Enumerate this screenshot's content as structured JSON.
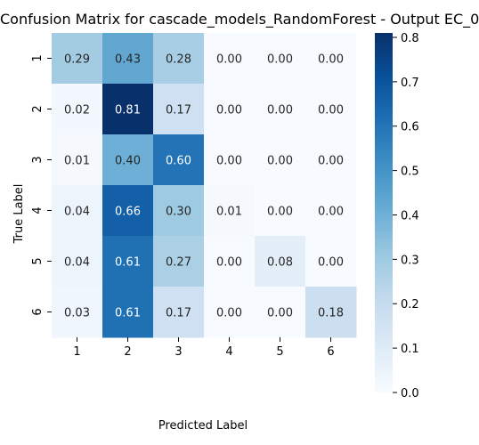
{
  "chart_data": {
    "type": "heatmap",
    "title": "Confusion Matrix for cascade_models_RandomForest - Output EC_0",
    "xlabel": "Predicted Label",
    "ylabel": "True Label",
    "x_categories": [
      "1",
      "2",
      "3",
      "4",
      "5",
      "6"
    ],
    "y_categories": [
      "1",
      "2",
      "3",
      "4",
      "5",
      "6"
    ],
    "values": [
      [
        0.29,
        0.43,
        0.28,
        0.0,
        0.0,
        0.0
      ],
      [
        0.02,
        0.81,
        0.17,
        0.0,
        0.0,
        0.0
      ],
      [
        0.01,
        0.4,
        0.6,
        0.0,
        0.0,
        0.0
      ],
      [
        0.04,
        0.66,
        0.3,
        0.01,
        0.0,
        0.0
      ],
      [
        0.04,
        0.61,
        0.27,
        0.0,
        0.08,
        0.0
      ],
      [
        0.03,
        0.61,
        0.17,
        0.0,
        0.0,
        0.18
      ]
    ],
    "value_format": "0.00",
    "colormap": "Blues",
    "colormap_low": "#f7fbff",
    "colormap_high": "#08306b",
    "colorbar": {
      "min": 0.0,
      "max": 0.81,
      "ticks": [
        0.0,
        0.1,
        0.2,
        0.3,
        0.4,
        0.5,
        0.6,
        0.7,
        0.8
      ],
      "tick_labels": [
        "0.0",
        "0.1",
        "0.2",
        "0.3",
        "0.4",
        "0.5",
        "0.6",
        "0.7",
        "0.8"
      ]
    },
    "grid": false
  }
}
